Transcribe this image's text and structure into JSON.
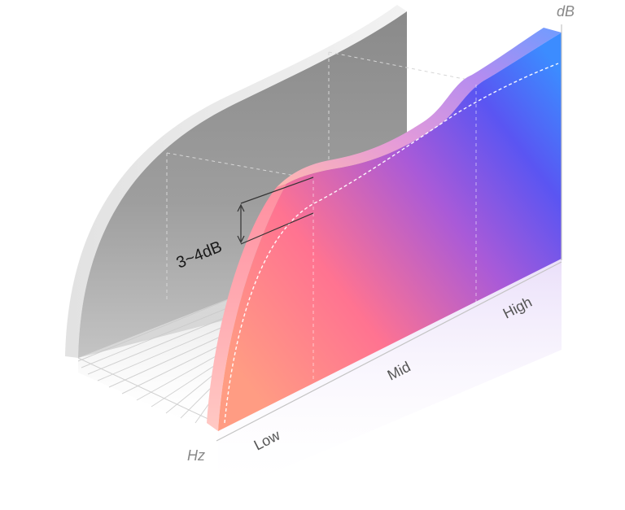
{
  "diagram": {
    "y_axis_unit": "dB",
    "x_axis_unit": "Hz",
    "band_labels": [
      "Low",
      "Mid",
      "High"
    ],
    "annotation": "3~4dB"
  },
  "colors": {
    "gray_panel": "#a8a8a8",
    "gradient_low": "#ff9a86",
    "gradient_mid": "#ff6f8f",
    "gradient_purple": "#8a55e6",
    "gradient_high": "#4b6cff",
    "axis_line": "#bfbfbf",
    "label_gray": "#555555"
  }
}
